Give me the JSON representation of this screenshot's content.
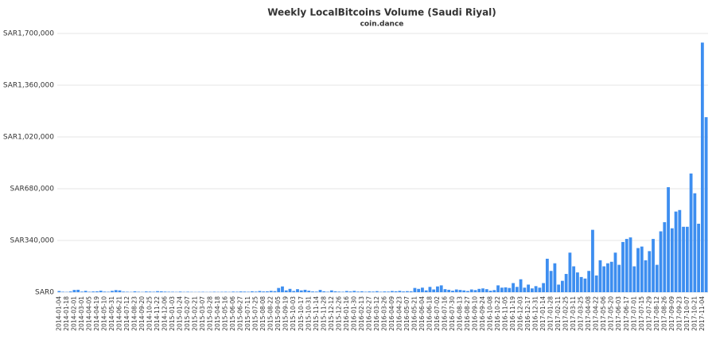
{
  "chart_data": {
    "type": "bar",
    "title": "Weekly LocalBitcoins Volume (Saudi Riyal)",
    "subtitle": "coin.dance",
    "color": "#3d8ef0",
    "grid": true,
    "ylim": [
      0,
      1700000
    ],
    "yticks": [
      {
        "value": 0,
        "label": "SAR0"
      },
      {
        "value": 340000,
        "label": "SAR340,000"
      },
      {
        "value": 680000,
        "label": "SAR680,000"
      },
      {
        "value": 1020000,
        "label": "SAR1,020,000"
      },
      {
        "value": 1360000,
        "label": "SAR1,360,000"
      },
      {
        "value": 1700000,
        "label": "SAR1,700,000"
      }
    ],
    "categories": [
      "2014-01-04",
      null,
      "2014-01-18",
      null,
      "2014-02-01",
      null,
      "2014-03-01",
      null,
      "2014-04-05",
      null,
      "2014-04-19",
      null,
      "2014-05-10",
      null,
      "2014-05-31",
      null,
      "2014-06-21",
      null,
      "2014-07-12",
      null,
      "2014-08-23",
      null,
      "2014-09-20",
      null,
      "2014-10-25",
      null,
      "2014-11-22",
      null,
      "2014-12-06",
      null,
      "2015-01-03",
      null,
      "2015-01-24",
      null,
      "2015-02-07",
      null,
      "2015-02-21",
      null,
      "2015-03-07",
      null,
      "2015-03-28",
      null,
      "2015-04-18",
      null,
      "2015-05-16",
      null,
      "2015-06-06",
      null,
      "2015-06-27",
      null,
      "2015-07-11",
      null,
      "2015-07-25",
      null,
      "2015-08-08",
      null,
      "2015-08-22",
      null,
      "2015-09-05",
      null,
      "2015-09-19",
      null,
      "2015-10-03",
      null,
      "2015-10-17",
      null,
      "2015-10-31",
      null,
      "2015-11-14",
      null,
      "2015-11-28",
      null,
      "2015-12-12",
      null,
      "2015-12-26",
      null,
      "2016-01-16",
      null,
      "2016-01-30",
      null,
      "2016-02-13",
      null,
      "2016-02-27",
      null,
      "2016-03-12",
      null,
      "2016-03-26",
      null,
      "2016-04-09",
      null,
      "2016-04-23",
      null,
      "2016-05-07",
      null,
      "2016-05-21",
      null,
      "2016-06-04",
      null,
      "2016-06-18",
      null,
      "2016-07-02",
      null,
      "2016-07-16",
      null,
      "2016-07-30",
      null,
      "2016-08-13",
      null,
      "2016-08-27",
      null,
      "2016-09-10",
      null,
      "2016-09-24",
      null,
      "2016-10-08",
      null,
      "2016-10-22",
      null,
      "2016-11-05",
      null,
      "2016-11-19",
      null,
      "2016-12-03",
      null,
      "2016-12-17",
      null,
      "2016-12-31",
      null,
      "2017-01-14",
      null,
      "2017-01-28",
      null,
      "2017-02-11",
      null,
      "2017-02-25",
      null,
      "2017-03-11",
      null,
      "2017-03-25",
      null,
      "2017-04-08",
      null,
      "2017-04-22",
      null,
      "2017-05-06",
      null,
      "2017-05-20",
      null,
      "2017-06-03",
      null,
      "2017-06-17",
      null,
      "2017-07-01",
      null,
      "2017-07-15",
      null,
      "2017-07-29",
      null,
      "2017-08-12",
      null,
      "2017-08-26",
      null,
      "2017-09-09",
      null,
      "2017-09-23",
      null,
      "2017-10-07",
      null,
      "2017-10-21",
      null,
      "2017-11-04",
      null
    ],
    "values": [
      8000,
      3000,
      2000,
      5000,
      15000,
      16000,
      4000,
      9000,
      3000,
      5000,
      6000,
      10000,
      4000,
      3000,
      9000,
      14000,
      12000,
      4000,
      3000,
      2000,
      6000,
      3000,
      2000,
      5000,
      4000,
      3000,
      7000,
      6000,
      4000,
      3000,
      3000,
      2000,
      4000,
      2000,
      3000,
      2000,
      1500,
      2000,
      2500,
      1500,
      2000,
      3000,
      2000,
      2500,
      3000,
      2000,
      4000,
      3000,
      5000,
      4000,
      3000,
      6000,
      4000,
      8000,
      5000,
      6000,
      9000,
      7000,
      28000,
      38000,
      12000,
      22000,
      8000,
      20000,
      12000,
      16000,
      10000,
      5000,
      4000,
      15000,
      6000,
      3000,
      12000,
      6000,
      4000,
      3000,
      8000,
      5000,
      9000,
      4000,
      6000,
      3000,
      5000,
      4000,
      7000,
      3000,
      5000,
      4000,
      8000,
      6000,
      9000,
      5000,
      7000,
      6000,
      28000,
      22000,
      30000,
      12000,
      35000,
      18000,
      38000,
      45000,
      20000,
      16000,
      10000,
      18000,
      15000,
      12000,
      8000,
      18000,
      14000,
      22000,
      25000,
      20000,
      10000,
      14000,
      45000,
      30000,
      32000,
      28000,
      60000,
      35000,
      85000,
      30000,
      50000,
      25000,
      40000,
      30000,
      60000,
      220000,
      140000,
      190000,
      50000,
      75000,
      120000,
      260000,
      170000,
      130000,
      100000,
      90000,
      140000,
      410000,
      110000,
      210000,
      170000,
      190000,
      200000,
      260000,
      180000,
      330000,
      350000,
      360000,
      170000,
      290000,
      300000,
      210000,
      270000,
      350000,
      180000,
      400000,
      460000,
      690000,
      420000,
      530000,
      540000,
      430000,
      430000,
      780000,
      650000,
      450000,
      1640000,
      1150000
    ]
  }
}
